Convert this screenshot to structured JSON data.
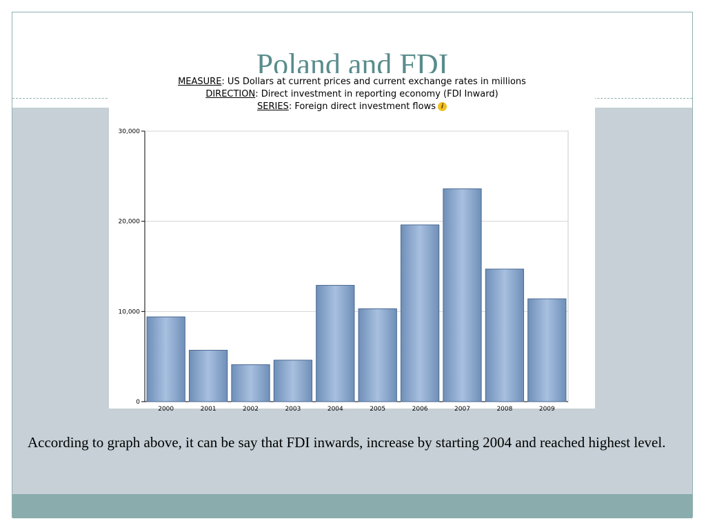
{
  "slide": {
    "title": "Poland and FDI",
    "caption": "According to graph above, it can be say that FDI inwards, increase by starting 2004 and reached highest level."
  },
  "chart_header": {
    "measure_key": "MEASURE",
    "measure_value": ": US Dollars at current prices and current exchange rates in millions",
    "direction_key": "DIRECTION",
    "direction_value": ": Direct investment in reporting economy (FDI Inward)",
    "series_key": "SERIES",
    "series_value": ": Foreign direct investment flows",
    "info_icon": "info-icon"
  },
  "chart_data": {
    "type": "bar",
    "categories": [
      "2000",
      "2001",
      "2002",
      "2003",
      "2004",
      "2005",
      "2006",
      "2007",
      "2008",
      "2009"
    ],
    "values": [
      9400,
      5700,
      4100,
      4600,
      12900,
      10300,
      19600,
      23600,
      14700,
      11400
    ],
    "ylim": [
      0,
      30000
    ],
    "yticks": [
      0,
      10000,
      20000,
      30000
    ],
    "ytick_labels": [
      "0",
      "10,000",
      "20,000",
      "30,000"
    ],
    "grid": true,
    "colors": {
      "bar_edge": "#4a6890",
      "bar_mid": "#a8c0e0",
      "bar_dark": "#6f8fb8"
    }
  }
}
